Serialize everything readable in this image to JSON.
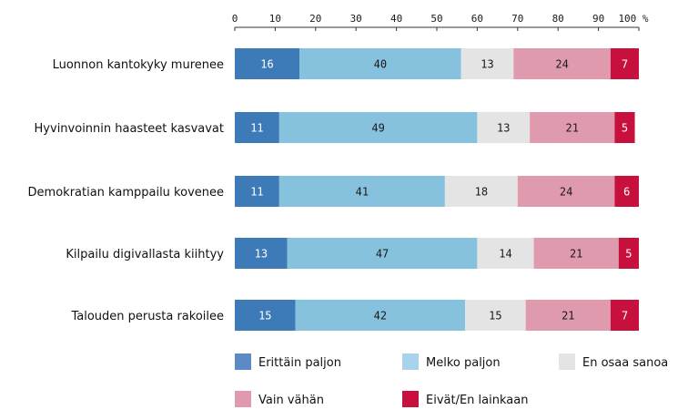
{
  "chart_data": {
    "type": "bar",
    "orientation": "horizontal",
    "stacked": true,
    "x_ticks": [
      "0",
      "10",
      "20",
      "30",
      "40",
      "50",
      "60",
      "70",
      "80",
      "90",
      "100 %"
    ],
    "xlim": [
      0,
      100
    ],
    "grid": false,
    "legend_position": "bottom",
    "categories": [
      "Luonnon kantokyky murenee",
      "Hyvinvoinnin haasteet kasvavat",
      "Demokratian kamppailu kovenee",
      "Kilpailu digivallasta kiihtyy",
      "Talouden perusta rakoilee"
    ],
    "series": [
      {
        "name": "Erittäin paljon",
        "color": "#3d7ab8",
        "label_color": "#ffffff",
        "values": [
          16,
          11,
          11,
          13,
          15
        ]
      },
      {
        "name": "Melko paljon",
        "color": "#86c1de",
        "label_color": "#1a1a1a",
        "values": [
          40,
          49,
          41,
          47,
          42
        ]
      },
      {
        "name": "En osaa sanoa",
        "color": "#e4e4e4",
        "label_color": "#1a1a1a",
        "values": [
          13,
          13,
          18,
          14,
          15
        ]
      },
      {
        "name": "Vain vähän",
        "color": "#e09aae",
        "label_color": "#1a1a1a",
        "values": [
          24,
          21,
          24,
          21,
          21
        ]
      },
      {
        "name": "Eivät/En lainkaan",
        "color": "#c8103e",
        "label_color": "#ffffff",
        "values": [
          7,
          5,
          6,
          5,
          7
        ]
      }
    ]
  },
  "legend": [
    {
      "label": "Erittäin paljon",
      "color": "#5b8ac6"
    },
    {
      "label": "Melko paljon",
      "color": "#a9d3eb"
    },
    {
      "label": "En osaa sanoa",
      "color": "#e4e4e4"
    },
    {
      "label": "Vain vähän",
      "color": "#e09aae"
    },
    {
      "label": "Eivät/En lainkaan",
      "color": "#c8103e"
    }
  ]
}
